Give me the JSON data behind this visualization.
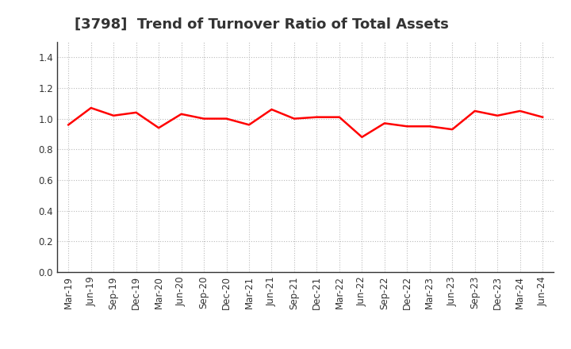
{
  "title": "[3798]  Trend of Turnover Ratio of Total Assets",
  "x_labels": [
    "Mar-19",
    "Jun-19",
    "Sep-19",
    "Dec-19",
    "Mar-20",
    "Jun-20",
    "Sep-20",
    "Dec-20",
    "Mar-21",
    "Jun-21",
    "Sep-21",
    "Dec-21",
    "Mar-22",
    "Jun-22",
    "Sep-22",
    "Dec-22",
    "Mar-23",
    "Jun-23",
    "Sep-23",
    "Dec-23",
    "Mar-24",
    "Jun-24"
  ],
  "values": [
    0.96,
    1.07,
    1.02,
    1.04,
    0.94,
    1.03,
    1.0,
    1.0,
    0.96,
    1.06,
    1.0,
    1.01,
    1.01,
    0.88,
    0.97,
    0.95,
    0.95,
    0.93,
    1.05,
    1.02,
    1.05,
    1.01
  ],
  "line_color": "#FF0000",
  "line_width": 1.8,
  "ylim": [
    0.0,
    1.5
  ],
  "yticks": [
    0.0,
    0.2,
    0.4,
    0.6,
    0.8,
    1.0,
    1.2,
    1.4
  ],
  "background_color": "#ffffff",
  "plot_bg_color": "#ffffff",
  "grid_color": "#bbbbbb",
  "title_fontsize": 13,
  "tick_fontsize": 8.5,
  "title_color": "#333333",
  "spine_color": "#333333"
}
